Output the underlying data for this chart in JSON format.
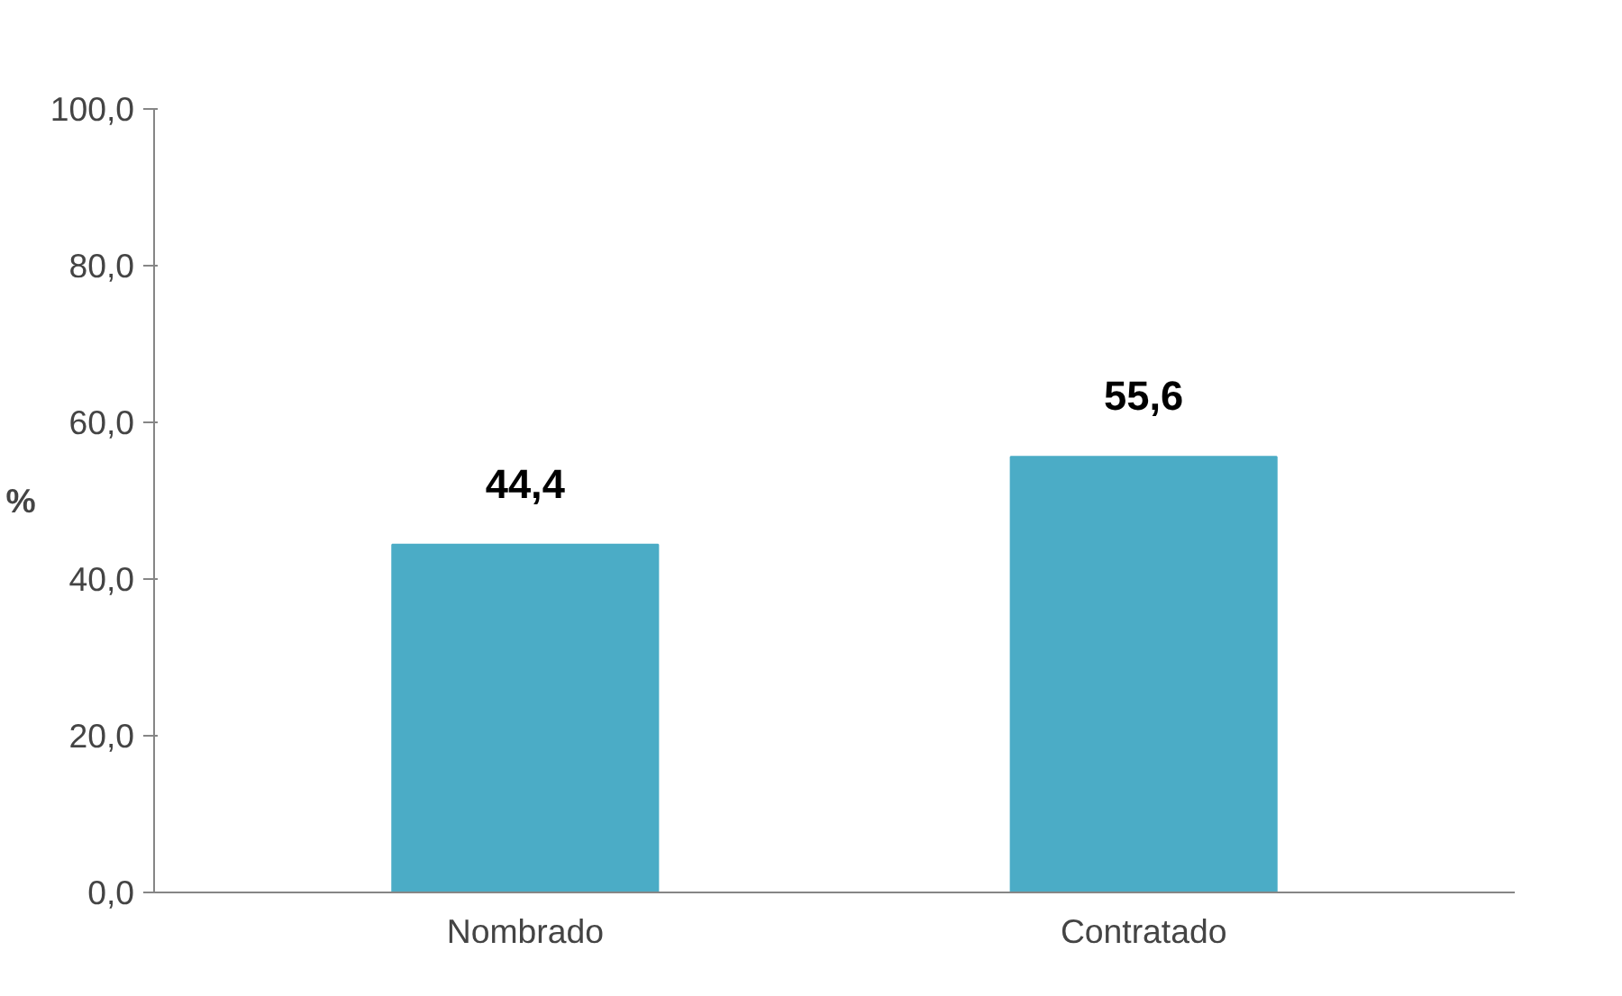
{
  "chart_data": {
    "type": "bar",
    "categories": [
      "Nombrado",
      "Contratado"
    ],
    "values": [
      44.4,
      55.6
    ],
    "value_labels": [
      "44,4",
      "55,6"
    ],
    "color": "#4bacc6",
    "ylabel": "%",
    "ylim": [
      0,
      100
    ],
    "yticks": [
      {
        "value": 0,
        "label": "0,0"
      },
      {
        "value": 20,
        "label": "20,0"
      },
      {
        "value": 40,
        "label": "40,0"
      },
      {
        "value": 60,
        "label": "60,0"
      },
      {
        "value": 80,
        "label": "80,0"
      },
      {
        "value": 100,
        "label": "100,0"
      }
    ],
    "grid": false
  }
}
